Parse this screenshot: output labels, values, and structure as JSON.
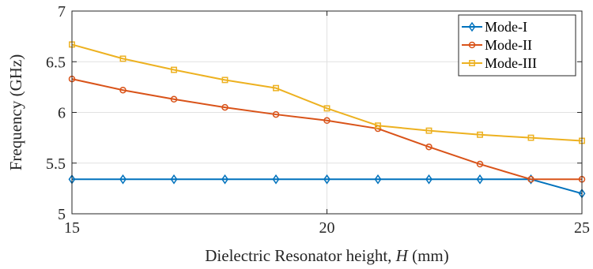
{
  "chart_data": {
    "type": "line",
    "title": "",
    "xlabel": "Dielectric Resonator height, H (mm)",
    "xlabel_parts": [
      "Dielectric Resonator height, ",
      "H",
      " (mm)"
    ],
    "ylabel": "Frequency (GHz)",
    "xlim": [
      15,
      25
    ],
    "ylim": [
      5,
      7
    ],
    "xticks": [
      "15",
      "20",
      "25"
    ],
    "yticks": [
      "5",
      "5.5",
      "6",
      "6.5",
      "7"
    ],
    "grid": true,
    "legend_position": "top-right",
    "x": [
      15,
      16,
      17,
      18,
      19,
      20,
      21,
      22,
      23,
      24,
      25
    ],
    "series": [
      {
        "name": "Mode-I",
        "color": "#0072BD",
        "marker": "diamond",
        "values": [
          5.34,
          5.34,
          5.34,
          5.34,
          5.34,
          5.34,
          5.34,
          5.34,
          5.34,
          5.34,
          5.2
        ]
      },
      {
        "name": "Mode-II",
        "color": "#D95319",
        "marker": "circle",
        "values": [
          6.33,
          6.22,
          6.13,
          6.05,
          5.98,
          5.92,
          5.84,
          5.66,
          5.49,
          5.34,
          5.34
        ]
      },
      {
        "name": "Mode-III",
        "color": "#EDB120",
        "marker": "square",
        "values": [
          6.67,
          6.53,
          6.42,
          6.32,
          6.24,
          6.04,
          5.87,
          5.82,
          5.78,
          5.75,
          5.72
        ]
      }
    ]
  }
}
